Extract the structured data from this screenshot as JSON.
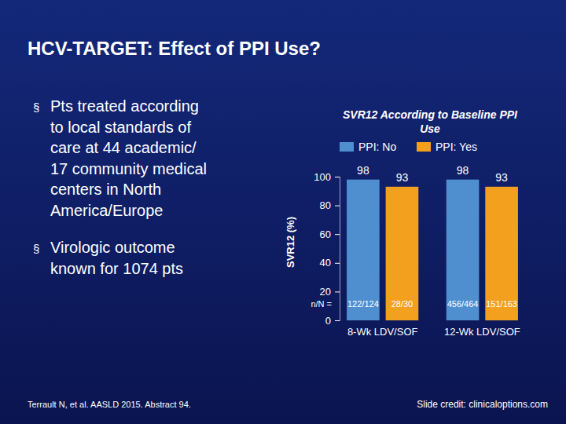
{
  "slide": {
    "title": "HCV-TARGET: Effect of PPI Use?",
    "bullet": "§",
    "bullets": [
      [
        "Pts treated according",
        "to local standards of",
        "care at 44 academic/",
        "17 community medical",
        "centers in North",
        "America/Europe"
      ],
      [
        "Virologic outcome",
        "known for 1074 pts"
      ]
    ],
    "footnote": "Terrault N, et al. AASLD 2015. Abstract 94.",
    "credit": "Slide credit: clinicaloptions.com"
  },
  "chart_data": {
    "type": "bar",
    "title": "SVR12 According to Baseline PPI Use",
    "y_label": "SVR12 (%)",
    "categories": [
      "8-Wk LDV/SOF",
      "12-Wk LDV/SOF"
    ],
    "series": [
      {
        "name": "PPI: No",
        "color": "#4f8fd0",
        "values": [
          98,
          98
        ],
        "n_over_N": [
          "122/124",
          "456/464"
        ]
      },
      {
        "name": "PPI: Yes",
        "color": "#f2a01e",
        "values": [
          93,
          93
        ],
        "n_over_N": [
          "28/30",
          "151/163"
        ]
      }
    ],
    "n_label": "n/N =",
    "ylim": [
      0,
      100
    ],
    "yticks": [
      0,
      20,
      40,
      60,
      80,
      100
    ],
    "grid": false,
    "legend": "top",
    "data_labels": true
  }
}
